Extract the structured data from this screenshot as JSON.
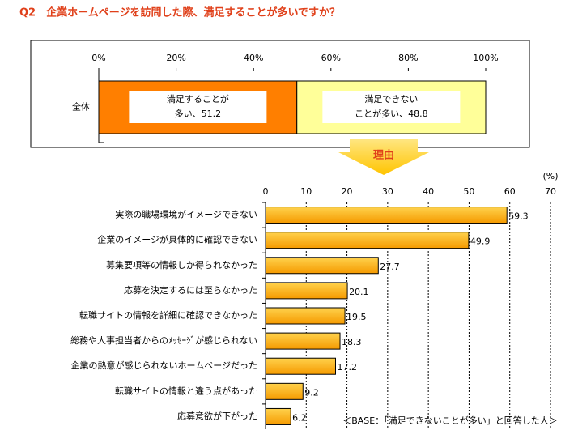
{
  "title": "Q2　企業ホームページを訪問した際、満足することが多いですか？",
  "arrow_label": "理由",
  "chart_data": [
    {
      "type": "stacked-bar",
      "orientation": "horizontal",
      "categories": [
        "全体"
      ],
      "series": [
        {
          "color": "#ff7f00",
          "values": [
            51.2
          ],
          "value_labels": [
            [
              "満足することが",
              "多い、51.2"
            ]
          ]
        },
        {
          "color": "#ffff99",
          "values": [
            48.8
          ],
          "value_labels": [
            [
              "満足できない",
              "ことが多い、48.8"
            ]
          ]
        }
      ],
      "xlim": [
        0,
        100
      ],
      "xticks": [
        {
          "value": 0,
          "label": "0%"
        },
        {
          "value": 20,
          "label": "20%"
        },
        {
          "value": 40,
          "label": "40%"
        },
        {
          "value": 60,
          "label": "60%"
        },
        {
          "value": 80,
          "label": "80%"
        },
        {
          "value": 100,
          "label": "100%"
        }
      ]
    },
    {
      "type": "bar",
      "orientation": "horizontal",
      "categories": [
        "実際の職場環境がイメージできない",
        "企業のイメージが具体的に確認できない",
        "募集要項等の情報しか得られなかった",
        "応募を決定するには至らなかった",
        "転職サイトの情報を詳細に確認できなかった",
        "総務や人事担当者からのﾒｯｾｰｼﾞが感じられない",
        "企業の熱意が感じられないホームページだった",
        "転職サイトの情報と違う点があった",
        "応募意欲が下がった"
      ],
      "values": [
        59.3,
        49.9,
        27.7,
        20.1,
        19.5,
        18.3,
        17.2,
        9.2,
        6.2
      ],
      "color": "#ffb000",
      "xlim": [
        0,
        70
      ],
      "xticks": [
        0,
        10,
        20,
        30,
        40,
        50,
        60,
        70
      ],
      "unit_label": "(%)",
      "grid": true,
      "note": "＜BASE：「満足できないことが多い」と回答した人＞"
    }
  ]
}
